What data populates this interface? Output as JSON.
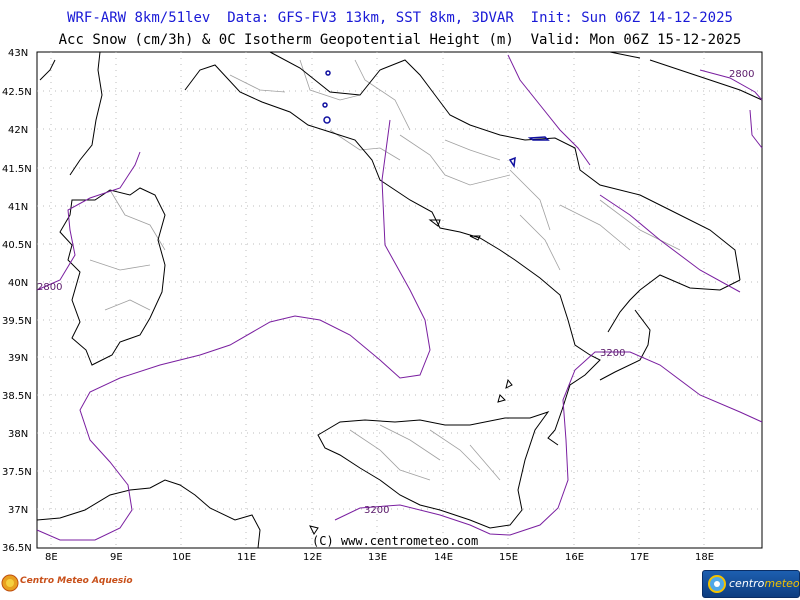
{
  "header": {
    "line1": "WRF-ARW 8km/51lev  Data: GFS-FV3 13km, SST 8km, 3DVAR  Init: Sun 06Z 14-12-2025",
    "line2": "Acc Snow (cm/3h) & 0C Isotherm Geopotential Height (m)  Valid: Mon 06Z 15-12-2025"
  },
  "map": {
    "lat_labels": [
      "43N",
      "42.5N",
      "42N",
      "41.5N",
      "41N",
      "40.5N",
      "40N",
      "39.5N",
      "39N",
      "38.5N",
      "38N",
      "37.5N",
      "37N",
      "36.5N"
    ],
    "lon_labels": [
      "8E",
      "9E",
      "10E",
      "11E",
      "12E",
      "13E",
      "14E",
      "15E",
      "16E",
      "17E",
      "18E"
    ],
    "isotherm_labels": [
      "2800",
      "2800",
      "3200",
      "3200"
    ],
    "credit": "(C) www.centrometeo.com",
    "colors": {
      "isotherm": "#7a1fa0",
      "coast": "#000000",
      "borders": "#a0a0a0",
      "snow": "#1010a0"
    }
  },
  "logos": {
    "left_text": "Centro Meteo Aquesio",
    "right_text_a": "centro",
    "right_text_b": "meteo"
  }
}
